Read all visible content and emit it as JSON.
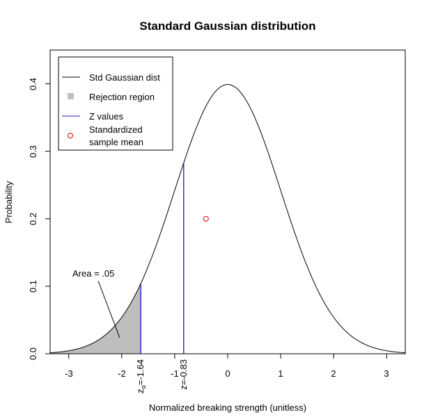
{
  "chart_data": {
    "type": "line",
    "title": "Standard Gaussian distribution",
    "xlabel": "Normalized breaking strength (unitless)",
    "ylabel": "Probability",
    "xlim": [
      -3.35,
      3.35
    ],
    "ylim": [
      0,
      0.45
    ],
    "xticks": [
      -3,
      -2,
      -1,
      0,
      1,
      2,
      3
    ],
    "xtick_labels": [
      "-3",
      "-2",
      "-1",
      "0",
      "1",
      "2",
      "3"
    ],
    "yticks": [
      0.0,
      0.1,
      0.2,
      0.3,
      0.4
    ],
    "ytick_labels": [
      "0.0",
      "0.1",
      "0.2",
      "0.3",
      "0.4"
    ],
    "grid": false,
    "legend_position": "top-left",
    "series": [
      {
        "name": "Std Gaussian dist",
        "kind": "curve",
        "function": "standard normal density",
        "mean": 0,
        "sd": 1,
        "color": "#000000"
      },
      {
        "name": "Rejection region",
        "kind": "shaded-area",
        "from": -3.35,
        "to": -1.64,
        "color": "#bebebe"
      },
      {
        "name": "Z values",
        "kind": "vertical-lines",
        "x": [
          -1.64,
          -0.83
        ],
        "color": "#0000cc"
      },
      {
        "name": "Standardized sample mean",
        "kind": "point",
        "x": -0.41,
        "y": 0.2,
        "color": "#e00000"
      }
    ],
    "z_labels": {
      "alpha_base": "z",
      "alpha_sub": "α",
      "alpha_value": "=-1.64",
      "observed": "z=-0.83"
    },
    "annotation": {
      "text": "Area = .05",
      "points_to_x": -2.0,
      "points_to_y": 0.022
    }
  },
  "legend": {
    "items": [
      {
        "label": "Std Gaussian dist",
        "icon": "line"
      },
      {
        "label": "Rejection region",
        "icon": "square"
      },
      {
        "label": "Z values",
        "icon": "line"
      },
      {
        "label": "Standardized",
        "label_line2": "sample mean",
        "icon": "circle"
      }
    ]
  }
}
